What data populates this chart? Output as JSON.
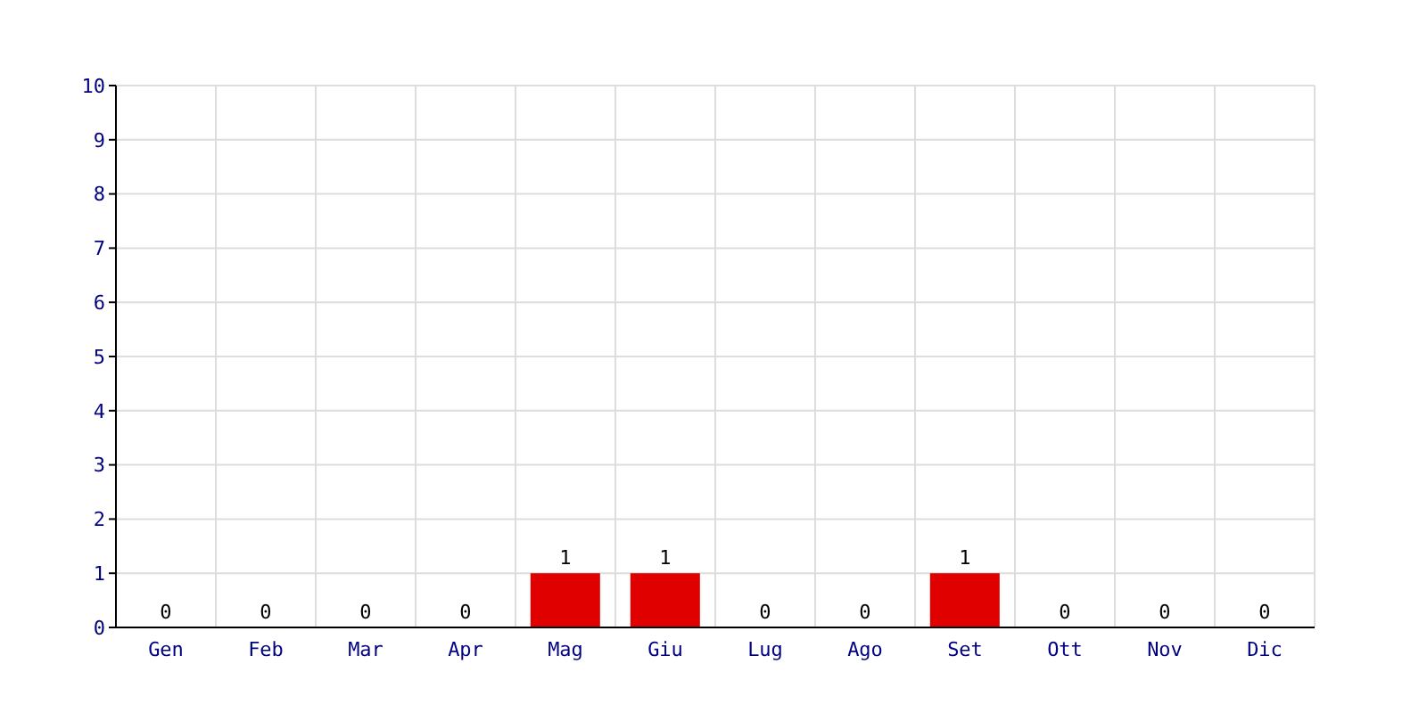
{
  "chart_data": {
    "type": "bar",
    "categories": [
      "Gen",
      "Feb",
      "Mar",
      "Apr",
      "Mag",
      "Giu",
      "Lug",
      "Ago",
      "Set",
      "Ott",
      "Nov",
      "Dic"
    ],
    "values": [
      0,
      0,
      0,
      0,
      1,
      1,
      0,
      0,
      1,
      0,
      0,
      0
    ],
    "color": "#e00000",
    "ylim": [
      0,
      10
    ],
    "yticks": [
      0,
      1,
      2,
      3,
      4,
      5,
      6,
      7,
      8,
      9,
      10
    ],
    "grid": true,
    "data_labels": true
  }
}
